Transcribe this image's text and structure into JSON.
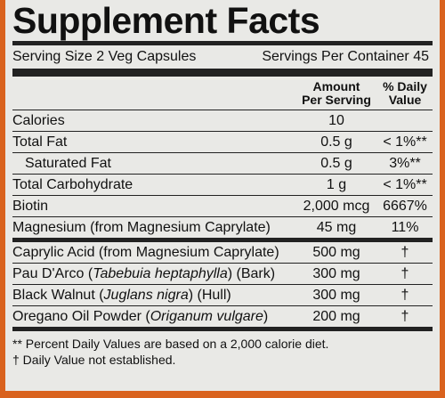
{
  "header": {
    "title": "Supplement Facts",
    "serving_size": "Serving Size 2 Veg Capsules",
    "servings_per_container": "Servings Per Container 45"
  },
  "columns": {
    "amount": [
      "Amount",
      "Per Serving"
    ],
    "daily_value": [
      "% Daily",
      "Value"
    ]
  },
  "groups": [
    [
      {
        "name": [
          "Calories"
        ],
        "amount": "10"
      },
      {
        "name": [
          "Total Fat"
        ],
        "amount": "0.5 g",
        "dv": "< 1%**"
      },
      {
        "name": [
          "Saturated Fat"
        ],
        "amount": "0.5 g",
        "dv": "3%**",
        "indent": true
      },
      {
        "name": [
          "Total Carbohydrate"
        ],
        "amount": "1 g",
        "dv": "< 1%**"
      },
      {
        "name": [
          "Biotin"
        ],
        "amount": "2,000 mcg",
        "dv": "6667%"
      },
      {
        "name": [
          "Magnesium (from Magnesium Caprylate)"
        ],
        "amount": "45 mg",
        "dv": "11%"
      }
    ],
    [
      {
        "name": [
          "Caprylic Acid (from Magnesium Caprylate)"
        ],
        "amount": "500 mg",
        "dv": "†"
      },
      {
        "name": [
          "Pau D'Arco (",
          {
            "text": "Tabebuia heptaphylla",
            "italic": true
          },
          ") (Bark)"
        ],
        "amount": "300 mg",
        "dv": "†"
      },
      {
        "name": [
          "Black Walnut (",
          {
            "text": "Juglans nigra",
            "italic": true
          },
          ") (Hull)"
        ],
        "amount": "300 mg",
        "dv": "†"
      },
      {
        "name": [
          "Oregano Oil Powder (",
          {
            "text": "Origanum vulgare",
            "italic": true
          },
          ")"
        ],
        "amount": "200 mg",
        "dv": "†"
      }
    ]
  ],
  "footnotes": [
    "** Percent Daily Values are based on a 2,000 calorie diet.",
    "† Daily Value not established."
  ]
}
